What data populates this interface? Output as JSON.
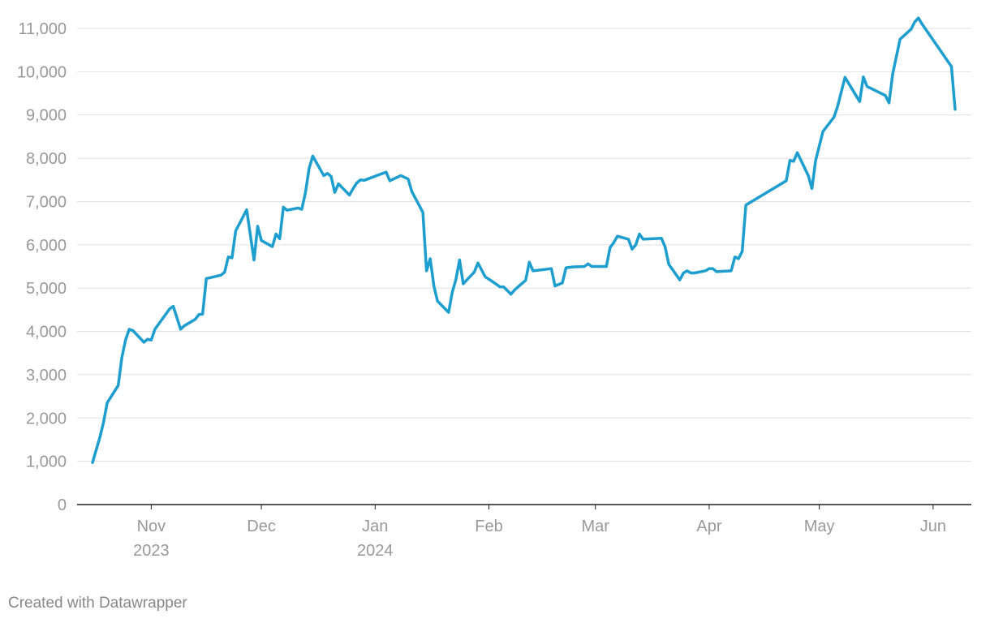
{
  "chart_data": {
    "type": "line",
    "title": "",
    "xlabel": "",
    "ylabel": "",
    "ylim": [
      0,
      11000
    ],
    "yticks": [
      0,
      1000,
      2000,
      3000,
      4000,
      5000,
      6000,
      7000,
      8000,
      9000,
      10000,
      11000
    ],
    "ytick_labels": [
      "0",
      "1,000",
      "2,000",
      "3,000",
      "4,000",
      "5,000",
      "6,000",
      "7,000",
      "8,000",
      "9,000",
      "10,000",
      "11,000"
    ],
    "xlim": [
      "2023-10-12",
      "2024-06-01"
    ],
    "xticks": [
      {
        "date": "2023-11-01",
        "label": "Nov",
        "sublabel": "2023"
      },
      {
        "date": "2023-12-01",
        "label": "Dec",
        "sublabel": ""
      },
      {
        "date": "2024-01-01",
        "label": "Jan",
        "sublabel": "2024"
      },
      {
        "date": "2024-02-01",
        "label": "Feb",
        "sublabel": ""
      },
      {
        "date": "2024-03-01",
        "label": "Mar",
        "sublabel": ""
      },
      {
        "date": "2024-04-01",
        "label": "Apr",
        "sublabel": ""
      },
      {
        "date": "2024-05-01",
        "label": "May",
        "sublabel": ""
      },
      {
        "date": "2024-06-01",
        "label": "Jun",
        "sublabel": ""
      }
    ],
    "grid": true,
    "line_color": "#1d9ecf",
    "grid_color": "#e0e0e0",
    "series": [
      {
        "points": [
          [
            "2023-10-16",
            970
          ],
          [
            "2023-10-18",
            1550
          ],
          [
            "2023-10-19",
            1900
          ],
          [
            "2023-10-20",
            2350
          ],
          [
            "2023-10-23",
            2750
          ],
          [
            "2023-10-24",
            3400
          ],
          [
            "2023-10-25",
            3800
          ],
          [
            "2023-10-26",
            4050
          ],
          [
            "2023-10-27",
            4020
          ],
          [
            "2023-10-30",
            3750
          ],
          [
            "2023-10-31",
            3820
          ],
          [
            "2023-11-01",
            3800
          ],
          [
            "2023-11-02",
            4050
          ],
          [
            "2023-11-06",
            4520
          ],
          [
            "2023-11-07",
            4580
          ],
          [
            "2023-11-09",
            4050
          ],
          [
            "2023-11-10",
            4130
          ],
          [
            "2023-11-13",
            4280
          ],
          [
            "2023-11-14",
            4390
          ],
          [
            "2023-11-15",
            4400
          ],
          [
            "2023-11-16",
            5220
          ],
          [
            "2023-11-20",
            5300
          ],
          [
            "2023-11-21",
            5370
          ],
          [
            "2023-11-22",
            5720
          ],
          [
            "2023-11-23",
            5700
          ],
          [
            "2023-11-24",
            6320
          ],
          [
            "2023-11-27",
            6810
          ],
          [
            "2023-11-29",
            5650
          ],
          [
            "2023-11-30",
            6430
          ],
          [
            "2023-12-01",
            6100
          ],
          [
            "2023-12-04",
            5960
          ],
          [
            "2023-12-05",
            6250
          ],
          [
            "2023-12-06",
            6140
          ],
          [
            "2023-12-07",
            6870
          ],
          [
            "2023-12-08",
            6800
          ],
          [
            "2023-12-11",
            6850
          ],
          [
            "2023-12-12",
            6820
          ],
          [
            "2023-12-13",
            7200
          ],
          [
            "2023-12-14",
            7760
          ],
          [
            "2023-12-15",
            8050
          ],
          [
            "2023-12-18",
            7600
          ],
          [
            "2023-12-19",
            7650
          ],
          [
            "2023-12-20",
            7580
          ],
          [
            "2023-12-21",
            7210
          ],
          [
            "2023-12-22",
            7410
          ],
          [
            "2023-12-25",
            7150
          ],
          [
            "2023-12-26",
            7300
          ],
          [
            "2023-12-27",
            7430
          ],
          [
            "2023-12-28",
            7500
          ],
          [
            "2023-12-29",
            7490
          ],
          [
            "2024-01-04",
            7680
          ],
          [
            "2024-01-05",
            7480
          ],
          [
            "2024-01-08",
            7600
          ],
          [
            "2024-01-10",
            7520
          ],
          [
            "2024-01-11",
            7230
          ],
          [
            "2024-01-14",
            6750
          ],
          [
            "2024-01-15",
            5400
          ],
          [
            "2024-01-16",
            5680
          ],
          [
            "2024-01-17",
            5050
          ],
          [
            "2024-01-18",
            4700
          ],
          [
            "2024-01-21",
            4440
          ],
          [
            "2024-01-22",
            4900
          ],
          [
            "2024-01-23",
            5200
          ],
          [
            "2024-01-24",
            5650
          ],
          [
            "2024-01-25",
            5100
          ],
          [
            "2024-01-28",
            5370
          ],
          [
            "2024-01-29",
            5580
          ],
          [
            "2024-01-31",
            5260
          ],
          [
            "2024-02-02",
            5150
          ],
          [
            "2024-02-04",
            5030
          ],
          [
            "2024-02-05",
            5030
          ],
          [
            "2024-02-07",
            4860
          ],
          [
            "2024-02-08",
            4960
          ],
          [
            "2024-02-11",
            5180
          ],
          [
            "2024-02-12",
            5600
          ],
          [
            "2024-02-13",
            5400
          ],
          [
            "2024-02-18",
            5450
          ],
          [
            "2024-02-19",
            5050
          ],
          [
            "2024-02-21",
            5120
          ],
          [
            "2024-02-22",
            5470
          ],
          [
            "2024-02-24",
            5490
          ],
          [
            "2024-02-27",
            5500
          ],
          [
            "2024-02-28",
            5560
          ],
          [
            "2024-02-29",
            5500
          ],
          [
            "2024-03-04",
            5500
          ],
          [
            "2024-03-05",
            5940
          ],
          [
            "2024-03-06",
            6050
          ],
          [
            "2024-03-07",
            6200
          ],
          [
            "2024-03-10",
            6130
          ],
          [
            "2024-03-11",
            5900
          ],
          [
            "2024-03-12",
            6000
          ],
          [
            "2024-03-13",
            6250
          ],
          [
            "2024-03-14",
            6130
          ],
          [
            "2024-03-19",
            6150
          ],
          [
            "2024-03-20",
            5950
          ],
          [
            "2024-03-21",
            5550
          ],
          [
            "2024-03-24",
            5190
          ],
          [
            "2024-03-25",
            5350
          ],
          [
            "2024-03-26",
            5400
          ],
          [
            "2024-03-27",
            5350
          ],
          [
            "2024-03-28",
            5350
          ],
          [
            "2024-03-31",
            5400
          ],
          [
            "2024-04-01",
            5450
          ],
          [
            "2024-04-02",
            5450
          ],
          [
            "2024-04-03",
            5380
          ],
          [
            "2024-04-07",
            5400
          ],
          [
            "2024-04-08",
            5720
          ],
          [
            "2024-04-09",
            5680
          ],
          [
            "2024-04-10",
            5850
          ],
          [
            "2024-04-11",
            6920
          ],
          [
            "2024-04-22",
            7480
          ],
          [
            "2024-04-23",
            7950
          ],
          [
            "2024-04-24",
            7930
          ],
          [
            "2024-04-25",
            8130
          ],
          [
            "2024-04-28",
            7600
          ],
          [
            "2024-04-29",
            7300
          ],
          [
            "2024-04-30",
            7950
          ],
          [
            "2024-05-02",
            8620
          ],
          [
            "2024-05-05",
            8950
          ],
          [
            "2024-05-06",
            9200
          ],
          [
            "2024-05-08",
            9870
          ],
          [
            "2024-05-12",
            9310
          ],
          [
            "2024-05-13",
            9880
          ],
          [
            "2024-05-14",
            9660
          ],
          [
            "2024-05-19",
            9450
          ],
          [
            "2024-05-20",
            9280
          ],
          [
            "2024-05-21",
            9950
          ],
          [
            "2024-05-23",
            10750
          ],
          [
            "2024-05-26",
            10980
          ],
          [
            "2024-05-27",
            11150
          ],
          [
            "2024-05-28",
            11240
          ],
          [
            "2024-05-29",
            11100
          ],
          [
            "2024-06-06",
            10120
          ],
          [
            "2024-06-07",
            9130
          ]
        ]
      }
    ]
  },
  "footer": {
    "credit": "Created with Datawrapper"
  }
}
